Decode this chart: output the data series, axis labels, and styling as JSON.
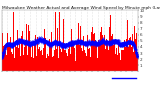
{
  "title": "Milwaukee Weather Actual and Average Wind Speed by Minute mph (Last 24 Hours)",
  "title_fontsize": 3.2,
  "background_color": "#ffffff",
  "bar_color": "#ff0000",
  "line_color": "#0000ff",
  "ylim": [
    0,
    10
  ],
  "yticks": [
    1,
    2,
    3,
    4,
    5,
    6,
    7,
    8,
    9,
    10
  ],
  "num_points": 1440,
  "grid_color": "#cccccc",
  "ylabel_fontsize": 3.0,
  "xlabel_fontsize": 2.8,
  "num_xticks": 24
}
